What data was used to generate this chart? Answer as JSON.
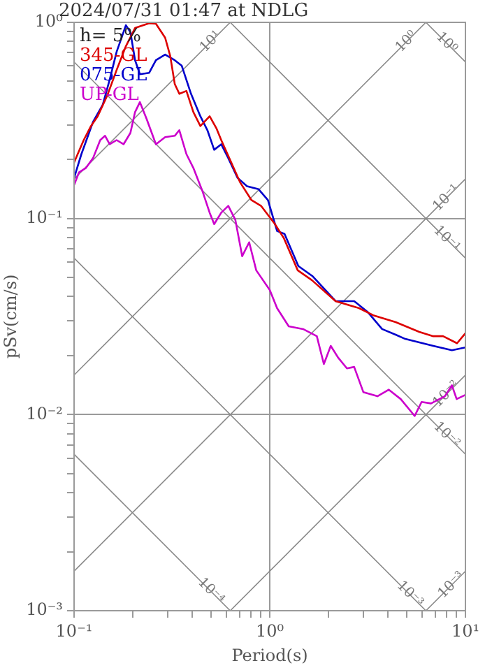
{
  "chart_data": {
    "type": "line",
    "title": "2024/07/31 01:47 at NDLG",
    "xlabel": "Period(s)",
    "ylabel": "pSv(cm/s)",
    "legend_title": "h= 5%",
    "legend": "top left",
    "log": "xy",
    "grid": true,
    "line_style": "solid",
    "marker": "none",
    "xlim": [
      0.1,
      10
    ],
    "ylim": [
      0.001,
      1
    ],
    "xticks": [
      {
        "value": 0.1,
        "label": "10⁻¹"
      },
      {
        "value": 0.2,
        "label": null
      },
      {
        "value": 0.3,
        "label": null
      },
      {
        "value": 0.4,
        "label": null
      },
      {
        "value": 0.5,
        "label": null
      },
      {
        "value": 0.6,
        "label": null
      },
      {
        "value": 0.7,
        "label": null
      },
      {
        "value": 0.8,
        "label": null
      },
      {
        "value": 0.9,
        "label": null
      },
      {
        "value": 1,
        "label": "10⁰"
      },
      {
        "value": 2,
        "label": null
      },
      {
        "value": 3,
        "label": null
      },
      {
        "value": 4,
        "label": null
      },
      {
        "value": 5,
        "label": null
      },
      {
        "value": 6,
        "label": null
      },
      {
        "value": 7,
        "label": null
      },
      {
        "value": 8,
        "label": null
      },
      {
        "value": 9,
        "label": null
      },
      {
        "value": 10,
        "label": "10¹"
      }
    ],
    "yticks": [
      {
        "value": 0.001,
        "label": "10⁻³"
      },
      {
        "value": 0.002,
        "label": null
      },
      {
        "value": 0.003,
        "label": null
      },
      {
        "value": 0.004,
        "label": null
      },
      {
        "value": 0.005,
        "label": null
      },
      {
        "value": 0.006,
        "label": null
      },
      {
        "value": 0.007,
        "label": null
      },
      {
        "value": 0.008,
        "label": null
      },
      {
        "value": 0.009,
        "label": null
      },
      {
        "value": 0.01,
        "label": "10⁻²"
      },
      {
        "value": 0.02,
        "label": null
      },
      {
        "value": 0.03,
        "label": null
      },
      {
        "value": 0.04,
        "label": null
      },
      {
        "value": 0.05,
        "label": null
      },
      {
        "value": 0.06,
        "label": null
      },
      {
        "value": 0.07,
        "label": null
      },
      {
        "value": 0.08,
        "label": null
      },
      {
        "value": 0.09,
        "label": null
      },
      {
        "value": 0.1,
        "label": "10⁻¹"
      },
      {
        "value": 0.2,
        "label": null
      },
      {
        "value": 0.3,
        "label": null
      },
      {
        "value": 0.4,
        "label": null
      },
      {
        "value": 0.5,
        "label": null
      },
      {
        "value": 0.6,
        "label": null
      },
      {
        "value": 0.7,
        "label": null
      },
      {
        "value": 0.8,
        "label": null
      },
      {
        "value": 0.9,
        "label": null
      },
      {
        "value": 1,
        "label": "10⁰"
      }
    ],
    "series": [
      {
        "name": "345-GL",
        "color": "#dd0000",
        "x": [
          0.1,
          0.112,
          0.122,
          0.132,
          0.148,
          0.165,
          0.184,
          0.205,
          0.242,
          0.262,
          0.292,
          0.31,
          0.327,
          0.345,
          0.375,
          0.407,
          0.442,
          0.493,
          0.535,
          0.565,
          0.631,
          0.705,
          0.807,
          0.902,
          1.06,
          1.18,
          1.39,
          1.64,
          2.17,
          2.86,
          3.38,
          4.4,
          5.81,
          6.85,
          7.69,
          9.06,
          10
        ],
        "values": [
          0.193,
          0.251,
          0.296,
          0.332,
          0.425,
          0.572,
          0.756,
          0.936,
          0.99,
          0.984,
          0.835,
          0.674,
          0.485,
          0.432,
          0.447,
          0.349,
          0.296,
          0.332,
          0.287,
          0.251,
          0.196,
          0.153,
          0.124,
          0.116,
          0.094,
          0.0794,
          0.0544,
          0.0485,
          0.0379,
          0.0349,
          0.0321,
          0.0296,
          0.0264,
          0.0251,
          0.0251,
          0.0231,
          0.026
        ]
      },
      {
        "name": "075-GL",
        "color": "#0000cc",
        "x": [
          0.1,
          0.109,
          0.125,
          0.14,
          0.152,
          0.165,
          0.184,
          0.194,
          0.205,
          0.217,
          0.242,
          0.262,
          0.292,
          0.327,
          0.355,
          0.396,
          0.442,
          0.48,
          0.52,
          0.565,
          0.614,
          0.685,
          0.765,
          0.877,
          0.979,
          1.09,
          1.19,
          1.4,
          1.65,
          2.17,
          2.7,
          3.18,
          3.75,
          4.42,
          4.93,
          6.85,
          8.53,
          10
        ],
        "values": [
          0.161,
          0.213,
          0.311,
          0.379,
          0.51,
          0.708,
          0.967,
          0.891,
          0.641,
          0.544,
          0.553,
          0.641,
          0.685,
          0.641,
          0.601,
          0.432,
          0.332,
          0.282,
          0.224,
          0.239,
          0.203,
          0.161,
          0.146,
          0.141,
          0.124,
          0.0863,
          0.0834,
          0.0572,
          0.0509,
          0.0379,
          0.0379,
          0.0332,
          0.0273,
          0.0255,
          0.0243,
          0.0224,
          0.0213,
          0.022
        ]
      },
      {
        "name": "UP-GL",
        "color": "#cc00cc",
        "x": [
          0.1,
          0.106,
          0.115,
          0.125,
          0.136,
          0.144,
          0.152,
          0.165,
          0.179,
          0.194,
          0.205,
          0.217,
          0.235,
          0.262,
          0.292,
          0.327,
          0.345,
          0.375,
          0.407,
          0.454,
          0.493,
          0.52,
          0.565,
          0.614,
          0.667,
          0.723,
          0.785,
          0.853,
          1.0,
          1.09,
          1.25,
          1.48,
          1.74,
          1.89,
          2.05,
          2.23,
          2.48,
          2.7,
          3.01,
          3.55,
          4.06,
          4.67,
          5.5,
          5.97,
          6.67,
          7.85,
          8.53,
          9.02,
          10
        ],
        "values": [
          0.148,
          0.172,
          0.181,
          0.203,
          0.251,
          0.264,
          0.239,
          0.251,
          0.239,
          0.273,
          0.349,
          0.392,
          0.321,
          0.239,
          0.26,
          0.264,
          0.282,
          0.213,
          0.181,
          0.137,
          0.107,
          0.0936,
          0.107,
          0.116,
          0.0984,
          0.0642,
          0.0756,
          0.0544,
          0.0432,
          0.0349,
          0.0282,
          0.0273,
          0.0251,
          0.0181,
          0.0224,
          0.0196,
          0.0172,
          0.0175,
          0.013,
          0.0124,
          0.0134,
          0.012,
          0.00984,
          0.0116,
          0.0114,
          0.0124,
          0.0141,
          0.012,
          0.0126
        ]
      },
      {
        "type": "line",
        "color": "#888888",
        "x": [
          6.28,
          10
        ],
        "values": [
          1,
          0.628
        ]
      },
      {
        "type": "line",
        "color": "#888888",
        "x": [
          0.628,
          10
        ],
        "values": [
          1,
          0.0628
        ]
      },
      {
        "type": "line",
        "color": "#888888",
        "x": [
          0.1,
          10
        ],
        "values": [
          0.628,
          0.00628
        ]
      },
      {
        "type": "line",
        "color": "#888888",
        "x": [
          0.1,
          6.28
        ],
        "values": [
          0.0628,
          0.001
        ]
      },
      {
        "type": "line",
        "color": "#888888",
        "x": [
          0.1,
          0.628
        ],
        "values": [
          0.00628,
          0.001
        ]
      },
      {
        "type": "line",
        "color": "#888888",
        "x": [
          0.1,
          0.628
        ],
        "values": [
          0.159,
          1
        ]
      },
      {
        "type": "line",
        "color": "#888888",
        "x": [
          0.1,
          6.28
        ],
        "values": [
          0.0159,
          1
        ]
      },
      {
        "type": "line",
        "color": "#888888",
        "x": [
          0.1,
          10
        ],
        "values": [
          0.00159,
          0.159
        ]
      },
      {
        "type": "line",
        "color": "#888888",
        "x": [
          0.628,
          10
        ],
        "values": [
          0.001,
          0.0159
        ]
      },
      {
        "type": "line",
        "color": "#888888",
        "x": [
          6.28,
          10
        ],
        "values": [
          0.001,
          0.00159
        ]
      }
    ],
    "annotations": [
      {
        "text": "10¹",
        "x": 0.5,
        "y": 0.796
      },
      {
        "text": "10⁰",
        "x": 5,
        "y": 0.796
      },
      {
        "text": "10⁰",
        "x": 8,
        "y": 0.785
      },
      {
        "text": "10⁻¹",
        "x": 8,
        "y": 0.127
      },
      {
        "text": "10⁻¹",
        "x": 8,
        "y": 0.0785
      },
      {
        "text": "10⁻²",
        "x": 8,
        "y": 0.0127
      },
      {
        "text": "10⁻²",
        "x": 8,
        "y": 0.00785
      },
      {
        "text": "10⁻³",
        "x": 8.5,
        "y": 0.00135
      },
      {
        "text": "10⁻³",
        "x": 5.2,
        "y": 0.00121
      },
      {
        "text": "10⁻⁴",
        "x": 0.5,
        "y": 0.00126
      }
    ]
  }
}
